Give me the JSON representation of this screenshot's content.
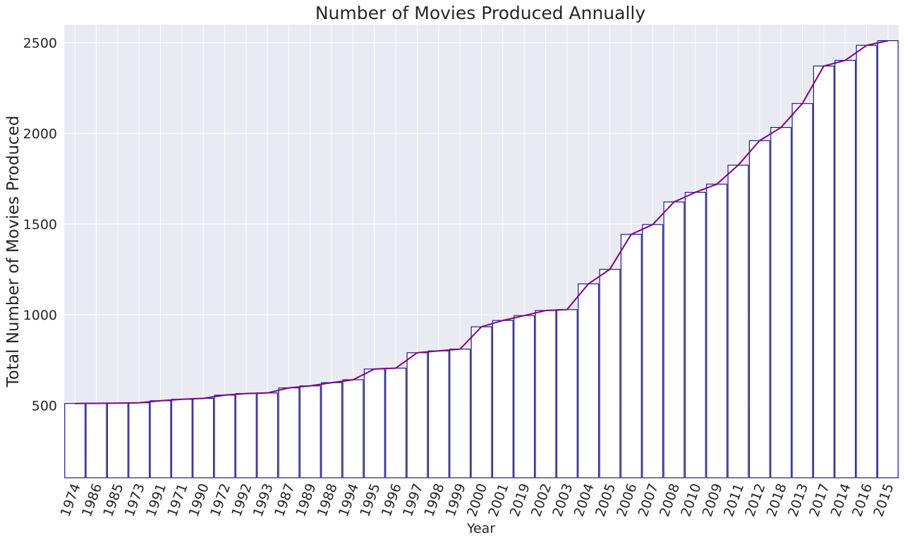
{
  "chart_data": {
    "type": "bar",
    "title": "Number of Movies Produced Annually",
    "xlabel": "Year",
    "ylabel": "Total Number of Movies Produced",
    "categories": [
      "1974",
      "1986",
      "1985",
      "1973",
      "1991",
      "1971",
      "1990",
      "1972",
      "1992",
      "1993",
      "1987",
      "1989",
      "1988",
      "1994",
      "1995",
      "1996",
      "1997",
      "1998",
      "1999",
      "2000",
      "2001",
      "2019",
      "2002",
      "2003",
      "2004",
      "2005",
      "2006",
      "2007",
      "2008",
      "2010",
      "2009",
      "2011",
      "2012",
      "2018",
      "2013",
      "2017",
      "2014",
      "2016",
      "2015"
    ],
    "values": [
      510,
      511,
      512,
      514,
      525,
      533,
      538,
      556,
      565,
      568,
      596,
      607,
      625,
      641,
      700,
      705,
      790,
      800,
      810,
      933,
      968,
      995,
      1023,
      1028,
      1170,
      1250,
      1443,
      1497,
      1622,
      1675,
      1720,
      1825,
      1960,
      2033,
      2165,
      2372,
      2403,
      2486,
      2512
    ],
    "overlay_line": true,
    "yticks": [
      500,
      1000,
      1500,
      2000,
      2500
    ],
    "ylim": [
      100,
      2600
    ],
    "grid": true,
    "colors": {
      "plot_background": "#eaeaf2",
      "bar_fill": "#ffffff",
      "bar_edge": "#1f1a8c",
      "line": "#800080"
    }
  }
}
